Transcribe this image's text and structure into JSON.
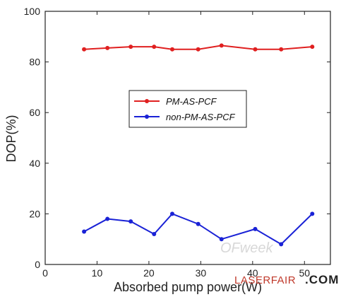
{
  "chart_data": {
    "type": "line",
    "xlabel": "Absorbed pump power(W)",
    "ylabel": "DOP(%)",
    "xlim": [
      0,
      55
    ],
    "ylim": [
      0,
      100
    ],
    "x_ticks": [
      0,
      10,
      20,
      30,
      40,
      50
    ],
    "y_ticks": [
      0,
      20,
      40,
      60,
      80,
      100
    ],
    "grid": false,
    "legend_position": "center",
    "series": [
      {
        "name": "PM-AS-PCF",
        "color": "#e02020",
        "x": [
          7.5,
          12,
          16.5,
          21,
          24.5,
          29.5,
          34,
          40.5,
          45.5,
          51.5
        ],
        "y": [
          85,
          85.5,
          86,
          86,
          85,
          85,
          86.5,
          85,
          85,
          86
        ]
      },
      {
        "name": "non-PM-AS-PCF",
        "color": "#1a22d6",
        "x": [
          7.5,
          12,
          16.5,
          21,
          24.5,
          29.5,
          34,
          40.5,
          45.5,
          51.5
        ],
        "y": [
          13,
          18,
          17,
          12,
          20,
          16,
          10,
          14,
          8,
          20
        ]
      }
    ]
  },
  "watermark": {
    "brand": "OFweek",
    "site": "LASERFAIR",
    "suffix": ".COM"
  }
}
